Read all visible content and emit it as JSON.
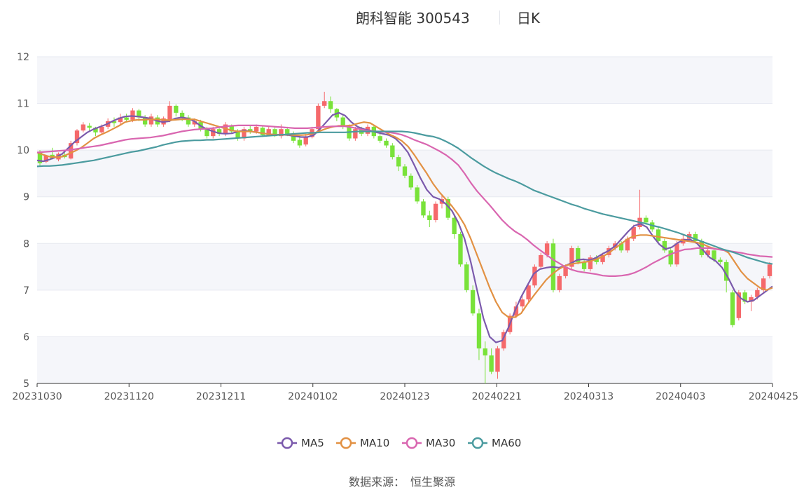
{
  "title": {
    "stock": "朗科智能 300543",
    "period": "日K"
  },
  "footer": {
    "source_label": "数据来源：",
    "source_name": "恒生聚源"
  },
  "colors": {
    "up": "#f5696b",
    "down": "#79e23a",
    "grid": "#e6e9f0",
    "band": "#f5f6fa",
    "axis": "#333333"
  },
  "chart_data": {
    "type": "candlestick",
    "ylim": [
      5,
      12
    ],
    "yticks": [
      "5",
      "6",
      "7",
      "8",
      "9",
      "10",
      "11",
      "12"
    ],
    "xticks": [
      "20231030",
      "20231120",
      "20231211",
      "20240102",
      "20240123",
      "20240221",
      "20240313",
      "20240403",
      "20240425"
    ],
    "legend_position": "bottom-center",
    "series": [
      {
        "name": "MA5",
        "color": "#7b5aac",
        "values": [
          9.78,
          9.76,
          9.8,
          9.85,
          9.92,
          10.05,
          10.18,
          10.28,
          10.38,
          10.45,
          10.5,
          10.55,
          10.62,
          10.68,
          10.72,
          10.73,
          10.72,
          10.7,
          10.68,
          10.63,
          10.6,
          10.62,
          10.68,
          10.7,
          10.68,
          10.62,
          10.52,
          10.45,
          10.4,
          10.36,
          10.35,
          10.36,
          10.4,
          10.42,
          10.4,
          10.38,
          10.36,
          10.34,
          10.33,
          10.33,
          10.32,
          10.3,
          10.28,
          10.28,
          10.32,
          10.45,
          10.6,
          10.75,
          10.8,
          10.74,
          10.6,
          10.5,
          10.45,
          10.42,
          10.38,
          10.35,
          10.32,
          10.25,
          10.12,
          9.95,
          9.68,
          9.4,
          9.15,
          9.0,
          8.95,
          8.85,
          8.7,
          8.45,
          8.1,
          7.6,
          7.0,
          6.4,
          6.0,
          5.88,
          5.92,
          6.2,
          6.55,
          6.85,
          7.1,
          7.35,
          7.45,
          7.48,
          7.5,
          7.48,
          7.52,
          7.58,
          7.65,
          7.66,
          7.64,
          7.7,
          7.78,
          7.85,
          7.95,
          8.1,
          8.25,
          8.38,
          8.42,
          8.35,
          8.15,
          7.98,
          7.88,
          7.92,
          8.02,
          8.08,
          8.08,
          8.0,
          7.85,
          7.7,
          7.62,
          7.48,
          7.25,
          6.98,
          6.82,
          6.75,
          6.78,
          6.88,
          6.98,
          7.08
        ]
      },
      {
        "name": "MA10",
        "color": "#e29143",
        "values": [
          9.95,
          9.9,
          9.86,
          9.85,
          9.86,
          9.92,
          9.98,
          10.05,
          10.15,
          10.25,
          10.32,
          10.38,
          10.45,
          10.52,
          10.6,
          10.63,
          10.65,
          10.65,
          10.66,
          10.66,
          10.65,
          10.64,
          10.65,
          10.66,
          10.66,
          10.66,
          10.62,
          10.58,
          10.54,
          10.5,
          10.46,
          10.42,
          10.4,
          10.4,
          10.4,
          10.38,
          10.36,
          10.34,
          10.33,
          10.33,
          10.33,
          10.32,
          10.32,
          10.33,
          10.36,
          10.41,
          10.46,
          10.5,
          10.52,
          10.52,
          10.53,
          10.57,
          10.6,
          10.58,
          10.5,
          10.42,
          10.34,
          10.28,
          10.2,
          10.08,
          9.9,
          9.7,
          9.5,
          9.28,
          9.1,
          8.95,
          8.8,
          8.62,
          8.4,
          8.1,
          7.75,
          7.4,
          7.05,
          6.75,
          6.52,
          6.42,
          6.42,
          6.5,
          6.7,
          6.88,
          7.05,
          7.22,
          7.35,
          7.45,
          7.52,
          7.56,
          7.58,
          7.6,
          7.62,
          7.66,
          7.72,
          7.8,
          7.9,
          8.0,
          8.1,
          8.16,
          8.18,
          8.18,
          8.16,
          8.14,
          8.12,
          8.1,
          8.08,
          8.06,
          8.04,
          8.02,
          7.98,
          7.92,
          7.88,
          7.88,
          7.8,
          7.6,
          7.4,
          7.25,
          7.15,
          7.05,
          7.0,
          7.05
        ]
      },
      {
        "name": "MA30",
        "color": "#d966b0",
        "values": [
          9.95,
          9.96,
          9.97,
          9.98,
          9.99,
          10.0,
          10.02,
          10.04,
          10.06,
          10.08,
          10.1,
          10.13,
          10.16,
          10.19,
          10.22,
          10.24,
          10.25,
          10.26,
          10.27,
          10.29,
          10.31,
          10.34,
          10.37,
          10.4,
          10.42,
          10.44,
          10.45,
          10.46,
          10.47,
          10.49,
          10.51,
          10.52,
          10.53,
          10.53,
          10.53,
          10.53,
          10.52,
          10.51,
          10.5,
          10.49,
          10.48,
          10.47,
          10.47,
          10.47,
          10.48,
          10.49,
          10.5,
          10.51,
          10.51,
          10.51,
          10.49,
          10.46,
          10.43,
          10.41,
          10.4,
          10.39,
          10.38,
          10.36,
          10.33,
          10.28,
          10.22,
          10.17,
          10.12,
          10.05,
          9.98,
          9.9,
          9.8,
          9.68,
          9.5,
          9.3,
          9.12,
          8.97,
          8.82,
          8.66,
          8.5,
          8.37,
          8.26,
          8.18,
          8.08,
          7.96,
          7.86,
          7.76,
          7.66,
          7.58,
          7.5,
          7.44,
          7.4,
          7.38,
          7.36,
          7.34,
          7.31,
          7.3,
          7.3,
          7.31,
          7.33,
          7.37,
          7.43,
          7.5,
          7.58,
          7.65,
          7.72,
          7.78,
          7.83,
          7.87,
          7.88,
          7.9,
          7.9,
          7.9,
          7.88,
          7.86,
          7.84,
          7.82,
          7.8,
          7.77,
          7.75,
          7.73,
          7.72,
          7.71
        ]
      },
      {
        "name": "MA60",
        "color": "#4b9b9f",
        "values": [
          9.65,
          9.66,
          9.66,
          9.67,
          9.68,
          9.7,
          9.72,
          9.74,
          9.76,
          9.78,
          9.81,
          9.84,
          9.87,
          9.9,
          9.93,
          9.96,
          9.98,
          10.01,
          10.04,
          10.07,
          10.11,
          10.14,
          10.17,
          10.19,
          10.2,
          10.21,
          10.21,
          10.22,
          10.22,
          10.23,
          10.24,
          10.25,
          10.26,
          10.27,
          10.28,
          10.29,
          10.3,
          10.31,
          10.32,
          10.33,
          10.34,
          10.35,
          10.36,
          10.37,
          10.37,
          10.38,
          10.38,
          10.38,
          10.38,
          10.38,
          10.39,
          10.4,
          10.4,
          10.4,
          10.4,
          10.4,
          10.4,
          10.4,
          10.4,
          10.39,
          10.37,
          10.34,
          10.31,
          10.29,
          10.25,
          10.19,
          10.12,
          10.04,
          9.94,
          9.84,
          9.75,
          9.66,
          9.58,
          9.51,
          9.45,
          9.39,
          9.34,
          9.28,
          9.21,
          9.14,
          9.09,
          9.04,
          8.99,
          8.94,
          8.89,
          8.84,
          8.8,
          8.75,
          8.71,
          8.67,
          8.63,
          8.6,
          8.57,
          8.54,
          8.51,
          8.48,
          8.45,
          8.42,
          8.38,
          8.35,
          8.31,
          8.27,
          8.23,
          8.18,
          8.13,
          8.08,
          8.03,
          7.98,
          7.93,
          7.88,
          7.84,
          7.8,
          7.75,
          7.7,
          7.66,
          7.62,
          7.58,
          7.56
        ]
      }
    ],
    "candles": [
      [
        9.95,
        9.72,
        10.0,
        9.65
      ],
      [
        9.75,
        9.88,
        9.9,
        9.72
      ],
      [
        9.9,
        9.82,
        10.05,
        9.8
      ],
      [
        9.8,
        9.92,
        9.95,
        9.76
      ],
      [
        9.9,
        9.85,
        9.98,
        9.82
      ],
      [
        9.82,
        10.15,
        10.2,
        9.8
      ],
      [
        10.15,
        10.42,
        10.45,
        10.1
      ],
      [
        10.42,
        10.55,
        10.6,
        10.38
      ],
      [
        10.52,
        10.48,
        10.58,
        10.4
      ],
      [
        10.48,
        10.38,
        10.5,
        10.3
      ],
      [
        10.38,
        10.5,
        10.55,
        10.35
      ],
      [
        10.5,
        10.62,
        10.68,
        10.45
      ],
      [
        10.62,
        10.58,
        10.7,
        10.5
      ],
      [
        10.6,
        10.7,
        10.78,
        10.55
      ],
      [
        10.7,
        10.65,
        10.78,
        10.6
      ],
      [
        10.65,
        10.85,
        10.9,
        10.6
      ],
      [
        10.85,
        10.7,
        10.88,
        10.62
      ],
      [
        10.7,
        10.55,
        10.75,
        10.5
      ],
      [
        10.55,
        10.72,
        10.78,
        10.5
      ],
      [
        10.7,
        10.55,
        10.75,
        10.5
      ],
      [
        10.55,
        10.68,
        10.72,
        10.5
      ],
      [
        10.65,
        10.95,
        11.05,
        10.6
      ],
      [
        10.95,
        10.8,
        10.98,
        10.72
      ],
      [
        10.8,
        10.7,
        10.85,
        10.62
      ],
      [
        10.7,
        10.55,
        10.75,
        10.5
      ],
      [
        10.55,
        10.62,
        10.68,
        10.5
      ],
      [
        10.6,
        10.45,
        10.65,
        10.4
      ],
      [
        10.45,
        10.3,
        10.5,
        10.25
      ],
      [
        10.3,
        10.45,
        10.5,
        10.25
      ],
      [
        10.45,
        10.35,
        10.5,
        10.3
      ],
      [
        10.35,
        10.55,
        10.6,
        10.3
      ],
      [
        10.52,
        10.4,
        10.55,
        10.35
      ],
      [
        10.4,
        10.25,
        10.45,
        10.2
      ],
      [
        10.25,
        10.45,
        10.5,
        10.2
      ],
      [
        10.45,
        10.4,
        10.52,
        10.35
      ],
      [
        10.4,
        10.5,
        10.55,
        10.35
      ],
      [
        10.48,
        10.32,
        10.52,
        10.28
      ],
      [
        10.32,
        10.45,
        10.5,
        10.3
      ],
      [
        10.45,
        10.3,
        10.5,
        10.28
      ],
      [
        10.3,
        10.45,
        10.55,
        10.25
      ],
      [
        10.45,
        10.35,
        10.5,
        10.3
      ],
      [
        10.35,
        10.2,
        10.4,
        10.15
      ],
      [
        10.22,
        10.1,
        10.3,
        10.05
      ],
      [
        10.12,
        10.28,
        10.35,
        10.08
      ],
      [
        10.28,
        10.45,
        10.5,
        10.25
      ],
      [
        10.45,
        10.95,
        11.0,
        10.4
      ],
      [
        10.95,
        11.05,
        11.25,
        10.9
      ],
      [
        11.05,
        10.88,
        11.15,
        10.8
      ],
      [
        10.88,
        10.7,
        10.9,
        10.62
      ],
      [
        10.7,
        10.5,
        10.75,
        10.45
      ],
      [
        10.5,
        10.25,
        10.55,
        10.2
      ],
      [
        10.25,
        10.45,
        10.5,
        10.2
      ],
      [
        10.45,
        10.35,
        10.5,
        10.3
      ],
      [
        10.35,
        10.5,
        10.55,
        10.3
      ],
      [
        10.5,
        10.3,
        10.55,
        10.25
      ],
      [
        10.3,
        10.2,
        10.35,
        10.15
      ],
      [
        10.2,
        10.1,
        10.25,
        10.05
      ],
      [
        10.1,
        9.85,
        10.15,
        9.8
      ],
      [
        9.85,
        9.65,
        9.9,
        9.55
      ],
      [
        9.65,
        9.45,
        9.7,
        9.4
      ],
      [
        9.45,
        9.2,
        9.5,
        9.15
      ],
      [
        9.2,
        8.9,
        9.25,
        8.85
      ],
      [
        8.9,
        8.6,
        8.95,
        8.55
      ],
      [
        8.6,
        8.5,
        8.7,
        8.35
      ],
      [
        8.5,
        8.85,
        8.9,
        8.45
      ],
      [
        8.85,
        8.95,
        9.05,
        8.75
      ],
      [
        8.95,
        8.55,
        9.0,
        8.5
      ],
      [
        8.55,
        8.2,
        8.6,
        8.1
      ],
      [
        8.2,
        7.55,
        8.25,
        7.5
      ],
      [
        7.55,
        7.0,
        7.6,
        6.95
      ],
      [
        7.0,
        6.5,
        7.1,
        6.45
      ],
      [
        6.5,
        5.75,
        6.6,
        5.5
      ],
      [
        5.75,
        5.6,
        5.9,
        5.0
      ],
      [
        5.6,
        5.25,
        5.75,
        5.2
      ],
      [
        5.25,
        5.75,
        5.8,
        5.1
      ],
      [
        5.75,
        6.1,
        6.15,
        5.7
      ],
      [
        6.1,
        6.45,
        6.5,
        6.05
      ],
      [
        6.45,
        6.65,
        6.75,
        6.4
      ],
      [
        6.65,
        6.8,
        6.9,
        6.55
      ],
      [
        6.8,
        7.1,
        7.15,
        6.75
      ],
      [
        7.1,
        7.5,
        7.55,
        7.05
      ],
      [
        7.5,
        7.75,
        7.8,
        7.45
      ],
      [
        7.75,
        8.0,
        8.05,
        7.7
      ],
      [
        8.0,
        7.0,
        8.1,
        6.95
      ],
      [
        7.0,
        7.3,
        7.35,
        6.95
      ],
      [
        7.3,
        7.5,
        7.55,
        7.25
      ],
      [
        7.5,
        7.9,
        7.95,
        7.45
      ],
      [
        7.9,
        7.6,
        7.95,
        7.55
      ],
      [
        7.6,
        7.45,
        7.65,
        7.4
      ],
      [
        7.45,
        7.7,
        7.75,
        7.4
      ],
      [
        7.7,
        7.6,
        7.75,
        7.55
      ],
      [
        7.6,
        7.75,
        7.8,
        7.55
      ],
      [
        7.75,
        7.9,
        7.95,
        7.7
      ],
      [
        7.9,
        8.0,
        8.05,
        7.85
      ],
      [
        8.0,
        7.85,
        8.05,
        7.8
      ],
      [
        7.85,
        8.1,
        8.15,
        7.8
      ],
      [
        8.1,
        8.35,
        8.4,
        8.05
      ],
      [
        8.35,
        8.55,
        9.15,
        8.3
      ],
      [
        8.55,
        8.45,
        8.6,
        8.4
      ],
      [
        8.45,
        8.3,
        8.5,
        8.25
      ],
      [
        8.3,
        8.05,
        8.35,
        8.0
      ],
      [
        8.05,
        7.85,
        8.1,
        7.8
      ],
      [
        7.85,
        7.55,
        7.9,
        7.5
      ],
      [
        7.55,
        8.0,
        8.05,
        7.5
      ],
      [
        8.0,
        8.1,
        8.2,
        7.95
      ],
      [
        8.1,
        8.2,
        8.25,
        8.05
      ],
      [
        8.2,
        8.05,
        8.25,
        8.0
      ],
      [
        8.05,
        7.75,
        8.1,
        7.7
      ],
      [
        7.75,
        7.85,
        7.9,
        7.7
      ],
      [
        7.85,
        7.65,
        7.9,
        7.6
      ],
      [
        7.65,
        7.6,
        7.7,
        7.55
      ],
      [
        7.6,
        7.2,
        7.65,
        6.95
      ],
      [
        6.95,
        6.25,
        7.0,
        6.2
      ],
      [
        6.4,
        6.95,
        7.0,
        6.35
      ],
      [
        6.95,
        6.75,
        7.0,
        6.7
      ],
      [
        6.75,
        6.85,
        6.9,
        6.55
      ],
      [
        6.85,
        7.0,
        7.05,
        6.8
      ],
      [
        7.0,
        7.25,
        7.3,
        6.95
      ],
      [
        7.3,
        7.55,
        7.6,
        7.25
      ]
    ]
  }
}
